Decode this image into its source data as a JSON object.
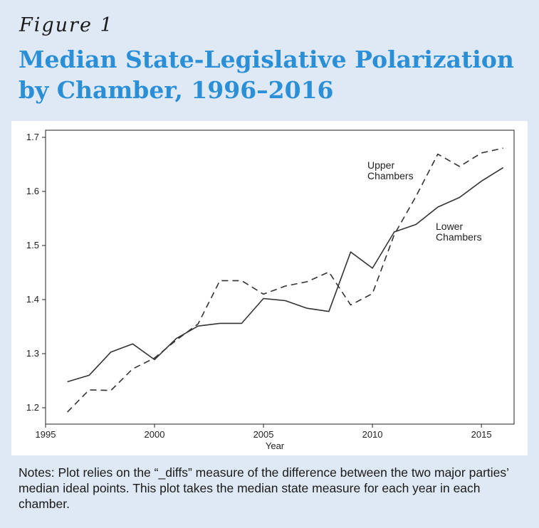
{
  "figure_label": "Figure 1",
  "title": "Median State-Legislative Polarization by Chamber, 1996–2016",
  "notes": "Notes: Plot relies on the “_diffs” measure of the difference between the two major parties’ median ideal points. This plot takes the median state measure for each year in each chamber.",
  "colors": {
    "background": "#dfe9f5",
    "title": "#2a8fd6",
    "lines": "#333333"
  },
  "chart_data": {
    "type": "line",
    "title": "",
    "xlabel": "Year",
    "ylabel": "",
    "xlim": [
      1995,
      2016.5
    ],
    "ylim": [
      1.2,
      1.7
    ],
    "x_ticks": [
      1995,
      2000,
      2005,
      2010,
      2015
    ],
    "y_ticks": [
      1.2,
      1.3,
      1.4,
      1.5,
      1.6,
      1.7
    ],
    "x": [
      1996,
      1997,
      1998,
      1999,
      2000,
      2001,
      2002,
      2003,
      2004,
      2005,
      2006,
      2007,
      2008,
      2009,
      2010,
      2011,
      2012,
      2013,
      2014,
      2015,
      2016
    ],
    "series": [
      {
        "name": "Upper Chambers",
        "style": "dashed",
        "label_lines": [
          "Upper",
          "Chambers"
        ],
        "values": [
          1.192,
          1.233,
          1.232,
          1.272,
          1.292,
          1.325,
          1.355,
          1.435,
          1.435,
          1.41,
          1.425,
          1.433,
          1.451,
          1.39,
          1.411,
          1.52,
          1.591,
          1.669,
          1.646,
          1.671,
          1.68
        ]
      },
      {
        "name": "Lower Chambers",
        "style": "solid",
        "label_lines": [
          "Lower",
          "Chambers"
        ],
        "values": [
          1.248,
          1.26,
          1.303,
          1.318,
          1.289,
          1.328,
          1.351,
          1.356,
          1.356,
          1.402,
          1.398,
          1.384,
          1.378,
          1.488,
          1.458,
          1.525,
          1.539,
          1.571,
          1.589,
          1.619,
          1.644
        ]
      }
    ],
    "grid": false,
    "legend": "none"
  }
}
